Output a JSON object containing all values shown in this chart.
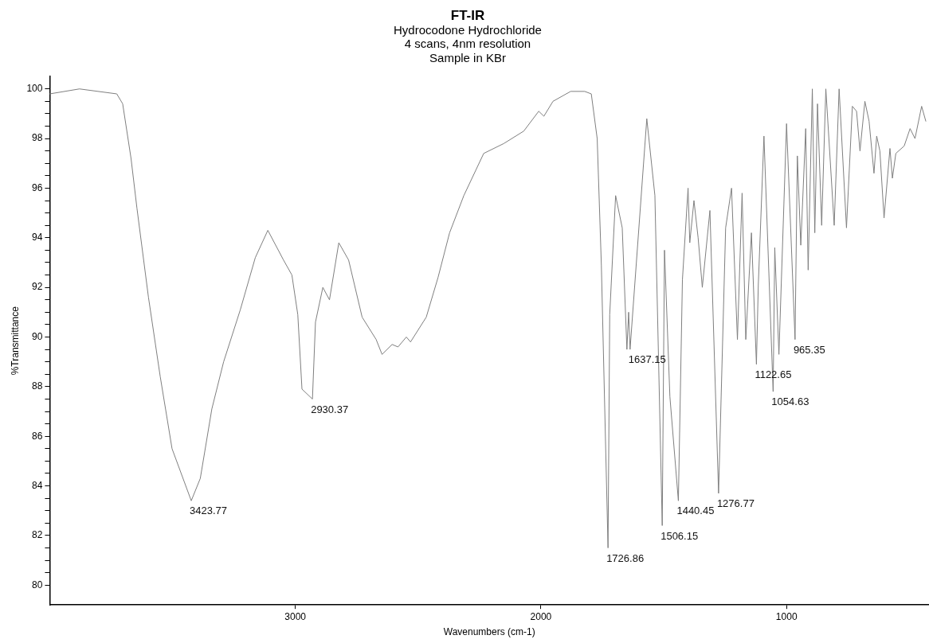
{
  "chart_data": {
    "type": "line",
    "title": "FT-IR",
    "subtitle": "Hydrocodone Hydrochloride\n4 scans, 4nm resolution\nSample in KBr",
    "xlabel": "Wavenumbers (cm-1)",
    "ylabel": "%Transmittance",
    "xlim": [
      4000,
      420
    ],
    "xticks": [
      3000,
      2000,
      1000
    ],
    "ylim": [
      79.2,
      100.5
    ],
    "yticks": [
      {
        "value": 80,
        "label": "80"
      },
      {
        "value": 80.5,
        "label": null
      },
      {
        "value": 81,
        "label": null
      },
      {
        "value": 81.5,
        "label": null
      },
      {
        "value": 82,
        "label": "82"
      },
      {
        "value": 82.5,
        "label": null
      },
      {
        "value": 83,
        "label": null
      },
      {
        "value": 83.5,
        "label": null
      },
      {
        "value": 84,
        "label": "84"
      },
      {
        "value": 84.5,
        "label": null
      },
      {
        "value": 85,
        "label": null
      },
      {
        "value": 85.5,
        "label": null
      },
      {
        "value": 86,
        "label": "86"
      },
      {
        "value": 86.5,
        "label": null
      },
      {
        "value": 87,
        "label": null
      },
      {
        "value": 87.5,
        "label": null
      },
      {
        "value": 88,
        "label": "88"
      },
      {
        "value": 88.5,
        "label": null
      },
      {
        "value": 89,
        "label": null
      },
      {
        "value": 89.5,
        "label": null
      },
      {
        "value": 90,
        "label": "90"
      },
      {
        "value": 90.5,
        "label": null
      },
      {
        "value": 91,
        "label": null
      },
      {
        "value": 91.5,
        "label": null
      },
      {
        "value": 92,
        "label": "92"
      },
      {
        "value": 92.5,
        "label": null
      },
      {
        "value": 93,
        "label": null
      },
      {
        "value": 93.5,
        "label": null
      },
      {
        "value": 94,
        "label": "94"
      },
      {
        "value": 94.5,
        "label": null
      },
      {
        "value": 95,
        "label": null
      },
      {
        "value": 95.5,
        "label": null
      },
      {
        "value": 96,
        "label": "96"
      },
      {
        "value": 96.5,
        "label": null
      },
      {
        "value": 97,
        "label": null
      },
      {
        "value": 97.5,
        "label": null
      },
      {
        "value": 98,
        "label": "98"
      },
      {
        "value": 98.5,
        "label": null
      },
      {
        "value": 99,
        "label": null
      },
      {
        "value": 99.5,
        "label": null
      },
      {
        "value": 100,
        "label": "100"
      }
    ],
    "grid": false,
    "legend": false,
    "series": [
      {
        "color": "#7f7f7f",
        "x": [
          4000,
          3879,
          3727,
          3703,
          3669,
          3645,
          3598,
          3550,
          3502,
          3423.77,
          3387,
          3340,
          3292,
          3224,
          3163,
          3112,
          3048,
          3014,
          2990,
          2973,
          2930.37,
          2918,
          2888,
          2861,
          2823,
          2783,
          2728,
          2671,
          2647,
          2606,
          2582,
          2548,
          2531,
          2467,
          2419,
          2372,
          2314,
          2233,
          2151,
          2070,
          2009,
          1988,
          1951,
          1879,
          1822,
          1795,
          1771,
          1754,
          1726.86,
          1720,
          1696,
          1669,
          1650,
          1643,
          1637.15,
          1569,
          1536,
          1506.15,
          1497,
          1475,
          1440.45,
          1424,
          1401,
          1394,
          1377,
          1360,
          1343,
          1312,
          1276.77,
          1248,
          1224,
          1200,
          1181,
          1166,
          1143,
          1122.65,
          1115,
          1092,
          1054.63,
          1048,
          1031,
          1000,
          965.35,
          956,
          942,
          922,
          912,
          895,
          885,
          874,
          857,
          840,
          806,
          786,
          756,
          732,
          715,
          701,
          681,
          664,
          644,
          633,
          620,
          603,
          579,
          569,
          555,
          521,
          497,
          477,
          450,
          433
        ],
        "values": [
          99.8,
          100.0,
          99.8,
          99.4,
          97.2,
          95.2,
          91.6,
          88.4,
          85.5,
          83.4,
          84.3,
          87.1,
          89.0,
          91.1,
          93.2,
          94.3,
          93.1,
          92.5,
          90.9,
          87.9,
          87.5,
          90.6,
          92.0,
          91.5,
          93.8,
          93.1,
          90.8,
          89.9,
          89.3,
          89.7,
          89.6,
          90.0,
          89.8,
          90.8,
          92.4,
          94.2,
          95.7,
          97.4,
          97.8,
          98.3,
          99.1,
          98.9,
          99.5,
          99.9,
          99.9,
          99.8,
          98.0,
          92.9,
          81.5,
          90.9,
          95.7,
          94.4,
          89.5,
          91.0,
          89.5,
          98.8,
          95.7,
          82.4,
          93.5,
          87.6,
          83.4,
          92.3,
          96.0,
          93.8,
          95.5,
          94.0,
          92.0,
          95.1,
          83.7,
          94.4,
          96.0,
          89.9,
          95.8,
          89.9,
          94.2,
          88.9,
          92.1,
          98.1,
          87.8,
          93.6,
          89.3,
          98.6,
          89.9,
          97.3,
          93.7,
          98.4,
          92.7,
          100.0,
          94.2,
          99.4,
          94.5,
          100.0,
          94.5,
          100.0,
          94.4,
          99.3,
          99.1,
          97.5,
          99.5,
          98.7,
          96.6,
          98.1,
          97.5,
          94.8,
          97.6,
          96.4,
          97.4,
          97.7,
          98.4,
          98.0,
          99.3,
          98.7
        ]
      }
    ],
    "annotations": [
      {
        "text": "3423.77",
        "x": 3423.77,
        "y": 83.4
      },
      {
        "text": "2930.37",
        "x": 2930.37,
        "y": 87.5
      },
      {
        "text": "1726.86",
        "x": 1726.86,
        "y": 81.5
      },
      {
        "text": "1637.15",
        "x": 1637.15,
        "y": 89.5
      },
      {
        "text": "1506.15",
        "x": 1506.15,
        "y": 82.4
      },
      {
        "text": "1440.45",
        "x": 1440.45,
        "y": 83.4
      },
      {
        "text": "1276.77",
        "x": 1276.77,
        "y": 83.7
      },
      {
        "text": "1122.65",
        "x": 1122.65,
        "y": 88.9
      },
      {
        "text": "1054.63",
        "x": 1054.63,
        "y": 87.8
      },
      {
        "text": "965.35",
        "x": 965.35,
        "y": 89.9
      }
    ]
  }
}
